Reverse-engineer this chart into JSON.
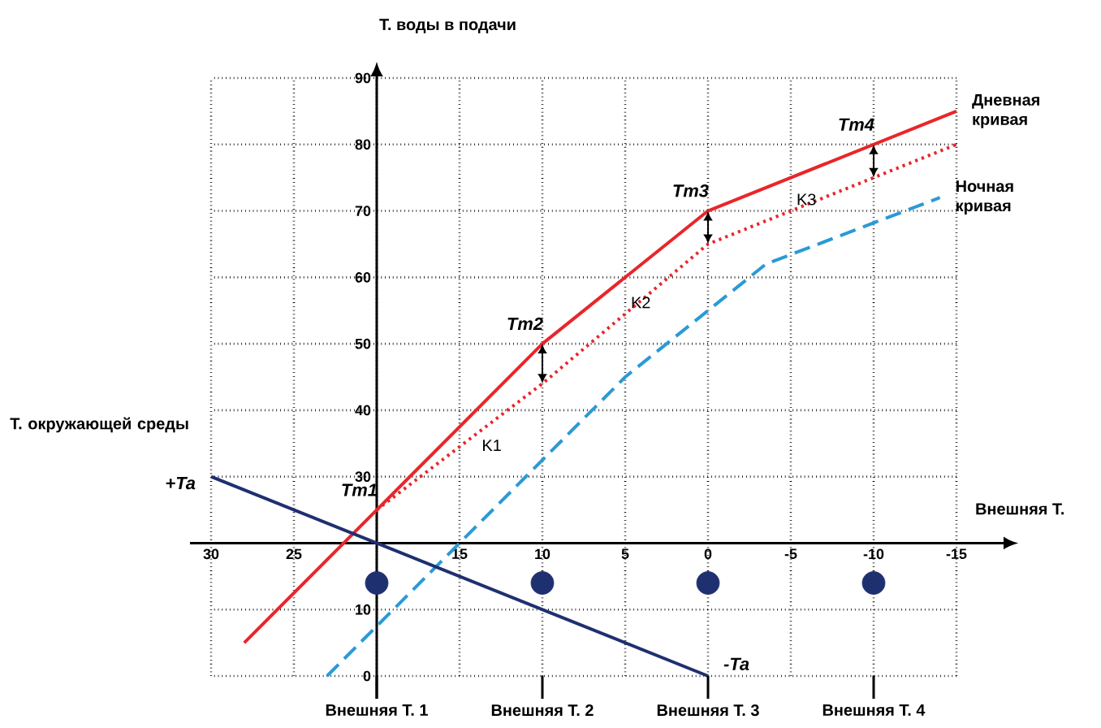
{
  "chart_data": {
    "type": "line",
    "ylabel": "Т. воды в подачи",
    "xlabel": "Внешняя Т.",
    "xlim": [
      30,
      -15
    ],
    "ylim": [
      0,
      90
    ],
    "xticks": [
      30,
      25,
      {
        "value": 20,
        "label": null
      },
      15,
      10,
      5,
      0,
      -5,
      -10,
      -15
    ],
    "yticks": [
      0,
      10,
      {
        "value": 20,
        "label": null
      },
      30,
      40,
      50,
      60,
      70,
      80,
      90
    ],
    "grid": true,
    "legend": false,
    "series": [
      {
        "name": "Дневная кривая",
        "color": "#e8262b",
        "line_style": "solid",
        "x": [
          28,
          20,
          10,
          0,
          -10,
          -15
        ],
        "values": [
          5,
          25,
          50,
          70,
          80,
          85
        ]
      },
      {
        "color": "#e8262b",
        "line_style": "dotted",
        "x": [
          20,
          10,
          0,
          -10,
          -15
        ],
        "values": [
          25,
          44,
          65,
          75,
          80
        ]
      },
      {
        "name": "Ночная кривая",
        "color": "#2a9ad6",
        "line_style": "dashed",
        "x": [
          23,
          15,
          5,
          -3.5,
          -14
        ],
        "values": [
          0,
          20,
          45,
          62,
          72
        ]
      },
      {
        "color": "#1f3070",
        "line_style": "solid",
        "x": [
          30,
          0
        ],
        "values": [
          30,
          0
        ]
      },
      {
        "type": "scatter",
        "color": "#1f3070",
        "marker": "circle",
        "x": [
          20,
          10,
          0,
          -10
        ],
        "values": [
          14,
          14,
          14,
          14
        ]
      }
    ],
    "annotations": [
      "Т. окружающей среды",
      {
        "text": "+Ta",
        "x": 30,
        "y": 30
      },
      {
        "text": "-Ta",
        "x": 0,
        "y": 0
      },
      {
        "text": "Tm1",
        "x": 20,
        "y": 25
      },
      {
        "text": "Tm2",
        "x": 10,
        "y": 50
      },
      {
        "text": "Tm3",
        "x": 0,
        "y": 70
      },
      {
        "text": "Tm4",
        "x": -10,
        "y": 80
      },
      {
        "text": "K1",
        "x": 14,
        "y": 36.4
      },
      {
        "text": "K2",
        "x": 5,
        "y": 54.5
      },
      {
        "text": "K3",
        "x": -5,
        "y": 70
      },
      "Внешняя Т. 1",
      "Внешняя Т. 2",
      "Внешняя Т. 3",
      "Внешняя Т. 4"
    ]
  }
}
